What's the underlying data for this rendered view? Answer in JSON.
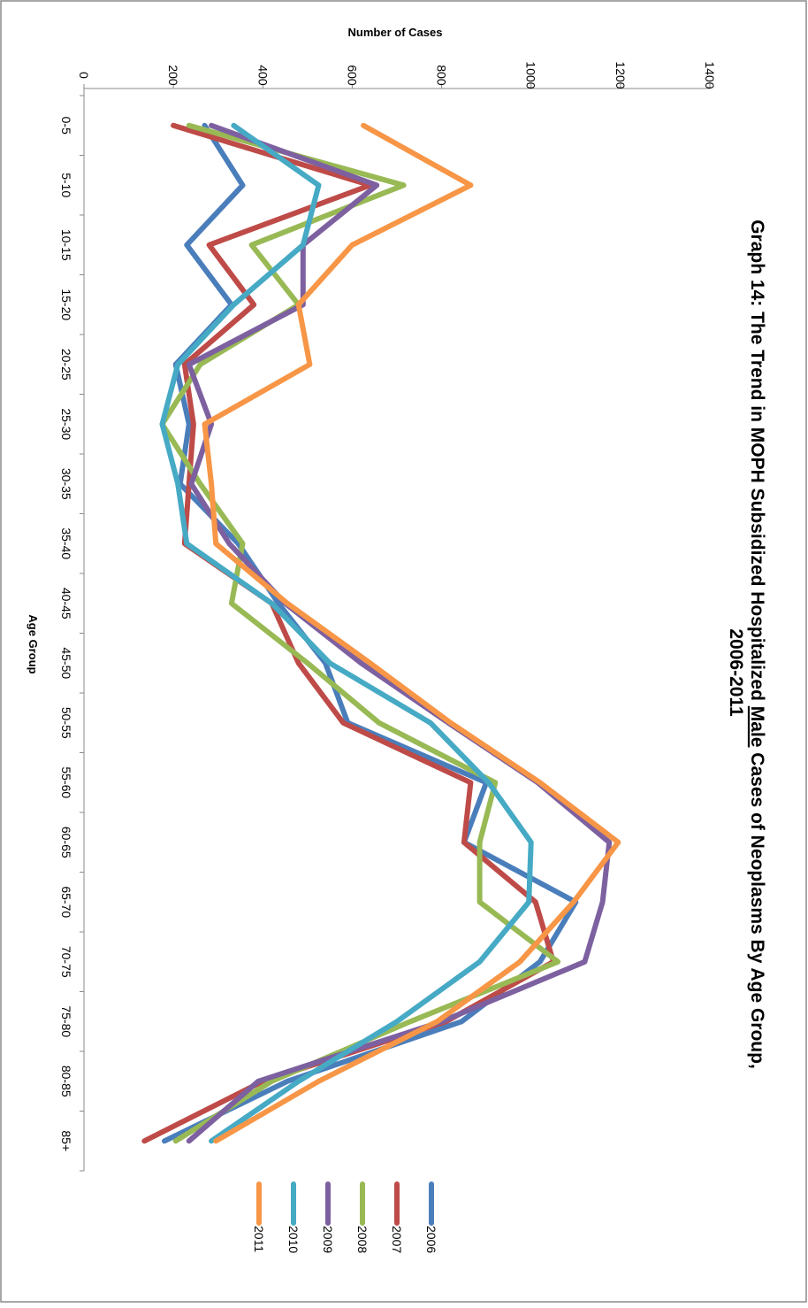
{
  "chart_data": {
    "type": "line",
    "title_line1": "Graph 14: The Trend in MOPH Subsidized Hospitalized ",
    "title_male": "Male",
    "title_line1_rest": " Cases of Neoplasms By Age Group,",
    "title_line2": "2006-2011",
    "xlabel": "Age Group",
    "ylabel": "Number of Cases",
    "ylim": [
      0,
      1400
    ],
    "y_ticks": [
      0,
      200,
      400,
      600,
      800,
      1000,
      1200,
      1400
    ],
    "categories": [
      "0-5",
      "5-10",
      "10-15",
      "15-20",
      "20-25",
      "25-30",
      "30-35",
      "35-40",
      "40-45",
      "45-50",
      "50-55",
      "55-60",
      "60-65",
      "65-70",
      "70-75",
      "75-80",
      "80-85",
      "85+"
    ],
    "grid": false,
    "legend_position": "bottom",
    "series": [
      {
        "name": "2006",
        "color": "#4a7ebb",
        "values": [
          270,
          355,
          230,
          330,
          205,
          235,
          215,
          345,
          435,
          540,
          590,
          900,
          850,
          1100,
          1020,
          845,
          455,
          180
        ]
      },
      {
        "name": "2007",
        "color": "#be4b48",
        "values": [
          200,
          640,
          280,
          380,
          225,
          245,
          235,
          225,
          420,
          480,
          580,
          865,
          850,
          1010,
          1050,
          810,
          400,
          135
        ]
      },
      {
        "name": "2008",
        "color": "#98b954",
        "values": [
          235,
          715,
          375,
          480,
          260,
          175,
          260,
          355,
          330,
          500,
          660,
          920,
          885,
          885,
          1060,
          730,
          420,
          205
        ]
      },
      {
        "name": "2009",
        "color": "#7d60a0",
        "values": [
          285,
          655,
          490,
          490,
          235,
          285,
          240,
          325,
          450,
          620,
          815,
          1015,
          1175,
          1160,
          1120,
          800,
          390,
          235
        ]
      },
      {
        "name": "2010",
        "color": "#46aac5",
        "values": [
          335,
          525,
          490,
          335,
          210,
          175,
          210,
          230,
          420,
          550,
          775,
          905,
          1000,
          995,
          885,
          700,
          480,
          285
        ]
      },
      {
        "name": "2011",
        "color": "#f79646",
        "values": [
          625,
          865,
          600,
          480,
          505,
          270,
          285,
          295,
          455,
          640,
          820,
          1020,
          1195,
          1095,
          975,
          790,
          525,
          295
        ]
      }
    ]
  }
}
